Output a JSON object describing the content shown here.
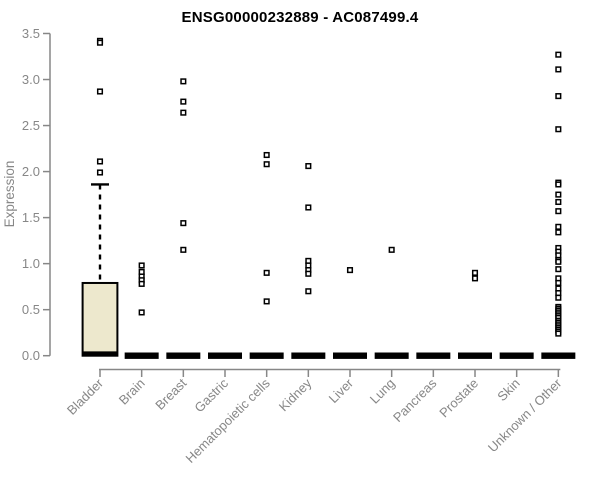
{
  "chart_data": {
    "type": "box",
    "title": "ENSG00000232889 - AC087499.4",
    "ylabel": "Expression",
    "ylim": [
      0,
      3.5
    ],
    "yticks": [
      0.0,
      0.5,
      1.0,
      1.5,
      2.0,
      2.5,
      3.0,
      3.5
    ],
    "grid": false,
    "categories": [
      "Bladder",
      "Brain",
      "Breast",
      "Gastric",
      "Hematopoietic cells",
      "Kidney",
      "Liver",
      "Lung",
      "Pancreas",
      "Prostate",
      "Skin",
      "Unknown / Other"
    ],
    "boxes": [
      {
        "category": "Bladder",
        "q1": 0.0,
        "median": 0.02,
        "q3": 0.79,
        "whisker_low": 0.0,
        "whisker_high": 1.86,
        "outliers": [
          3.42,
          3.4,
          2.87,
          2.11,
          1.99
        ]
      },
      {
        "category": "Brain",
        "q1": 0.0,
        "median": 0.0,
        "q3": 0.0,
        "whisker_low": 0.0,
        "whisker_high": 0.0,
        "outliers": [
          0.98,
          0.91,
          0.86,
          0.82,
          0.78,
          0.47
        ]
      },
      {
        "category": "Breast",
        "q1": 0.0,
        "median": 0.0,
        "q3": 0.0,
        "whisker_low": 0.0,
        "whisker_high": 0.0,
        "outliers": [
          2.98,
          2.76,
          2.64,
          1.44,
          1.15
        ]
      },
      {
        "category": "Gastric",
        "q1": 0.0,
        "median": 0.0,
        "q3": 0.0,
        "whisker_low": 0.0,
        "whisker_high": 0.0,
        "outliers": []
      },
      {
        "category": "Hematopoietic cells",
        "q1": 0.0,
        "median": 0.0,
        "q3": 0.0,
        "whisker_low": 0.0,
        "whisker_high": 0.0,
        "outliers": [
          2.18,
          2.08,
          0.9,
          0.59
        ]
      },
      {
        "category": "Kidney",
        "q1": 0.0,
        "median": 0.0,
        "q3": 0.0,
        "whisker_low": 0.0,
        "whisker_high": 0.0,
        "outliers": [
          2.06,
          1.61,
          1.03,
          0.98,
          0.93,
          0.89,
          0.7
        ]
      },
      {
        "category": "Liver",
        "q1": 0.0,
        "median": 0.0,
        "q3": 0.0,
        "whisker_low": 0.0,
        "whisker_high": 0.0,
        "outliers": [
          0.93
        ]
      },
      {
        "category": "Lung",
        "q1": 0.0,
        "median": 0.0,
        "q3": 0.0,
        "whisker_low": 0.0,
        "whisker_high": 0.0,
        "outliers": [
          1.15
        ]
      },
      {
        "category": "Pancreas",
        "q1": 0.0,
        "median": 0.0,
        "q3": 0.0,
        "whisker_low": 0.0,
        "whisker_high": 0.0,
        "outliers": []
      },
      {
        "category": "Prostate",
        "q1": 0.0,
        "median": 0.0,
        "q3": 0.0,
        "whisker_low": 0.0,
        "whisker_high": 0.0,
        "outliers": [
          0.9,
          0.84
        ]
      },
      {
        "category": "Skin",
        "q1": 0.0,
        "median": 0.0,
        "q3": 0.0,
        "whisker_low": 0.0,
        "whisker_high": 0.0,
        "outliers": []
      },
      {
        "category": "Unknown / Other",
        "q1": 0.0,
        "median": 0.0,
        "q3": 0.0,
        "whisker_low": 0.0,
        "whisker_high": 0.0,
        "outliers": [
          3.27,
          3.11,
          2.82,
          2.46,
          1.88,
          1.86,
          1.75,
          1.67,
          1.57,
          1.4,
          1.34,
          1.17,
          1.13,
          1.09,
          1.04,
          1.02,
          0.94,
          0.84,
          0.79,
          0.73,
          0.68,
          0.63,
          0.53,
          0.51,
          0.49,
          0.47,
          0.45,
          0.43,
          0.41,
          0.38,
          0.36,
          0.34,
          0.32,
          0.3,
          0.28,
          0.26,
          0.24
        ]
      }
    ],
    "colors": {
      "box_fill": "#ede8cd",
      "box_stroke": "#000000",
      "median": "#000000",
      "zero_bar": "#000000",
      "point_fill": "#ffffff",
      "point_stroke": "#000000",
      "axis": "#878787",
      "title": "#000000"
    }
  }
}
